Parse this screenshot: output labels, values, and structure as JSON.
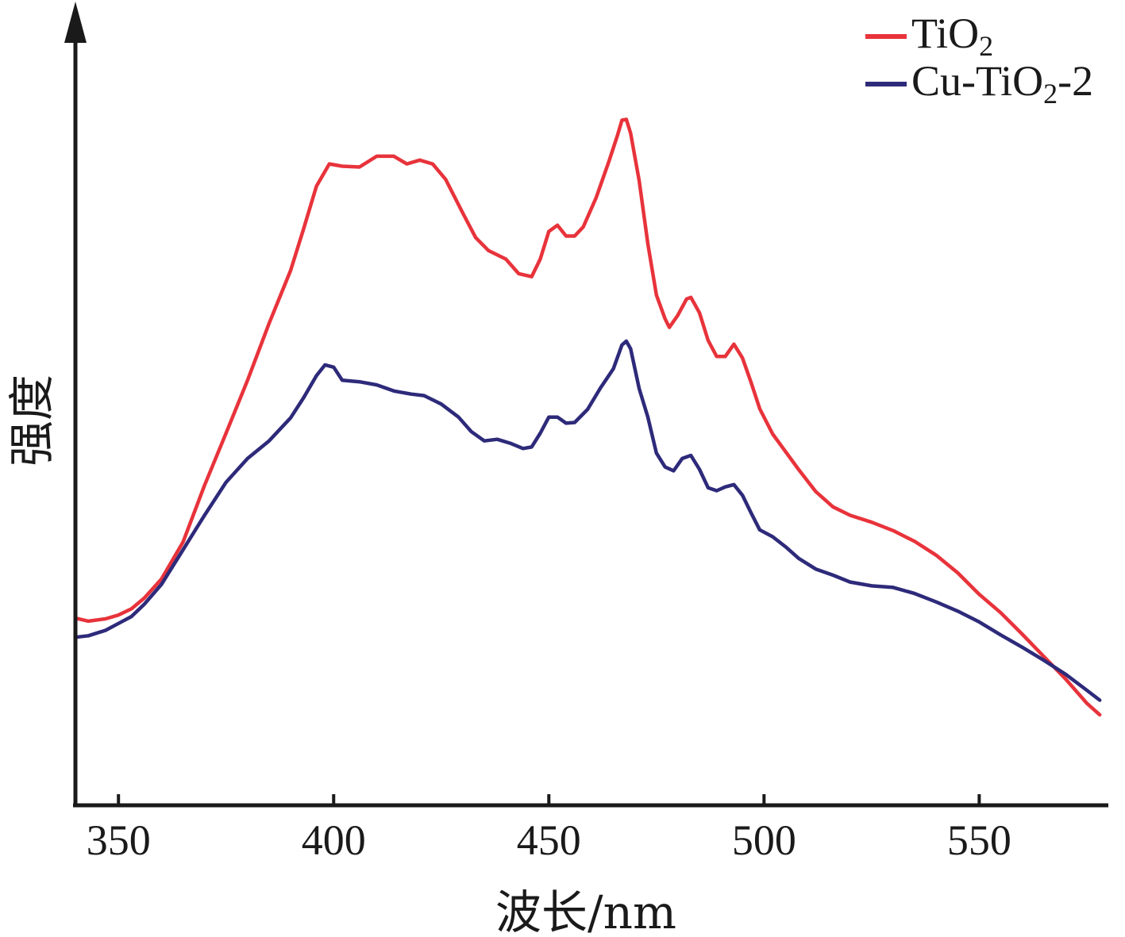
{
  "chart_data": {
    "type": "line",
    "xlabel": "波长/nm",
    "ylabel": "强度",
    "xlim": [
      340,
      580
    ],
    "ylim": [
      0,
      100
    ],
    "y_ticks_shown": false,
    "x_ticks": [
      350,
      400,
      450,
      500,
      550
    ],
    "grid": false,
    "legend_position": "top-right",
    "series": [
      {
        "name": "TiO",
        "name_sub": "2",
        "color": "#e8333b",
        "points": [
          [
            340,
            24.4
          ],
          [
            343,
            24.0
          ],
          [
            347,
            24.3
          ],
          [
            350,
            24.8
          ],
          [
            353,
            25.6
          ],
          [
            356,
            27.0
          ],
          [
            360,
            29.5
          ],
          [
            365,
            34.3
          ],
          [
            370,
            41.7
          ],
          [
            375,
            48.5
          ],
          [
            380,
            55.4
          ],
          [
            385,
            62.8
          ],
          [
            390,
            69.7
          ],
          [
            393,
            75.1
          ],
          [
            396,
            80.7
          ],
          [
            399,
            83.6
          ],
          [
            402,
            83.3
          ],
          [
            406,
            83.2
          ],
          [
            410,
            84.6
          ],
          [
            414,
            84.6
          ],
          [
            417,
            83.6
          ],
          [
            420,
            84.1
          ],
          [
            423,
            83.6
          ],
          [
            426,
            81.6
          ],
          [
            430,
            77.2
          ],
          [
            433,
            74.0
          ],
          [
            436,
            72.3
          ],
          [
            440,
            71.2
          ],
          [
            443,
            69.3
          ],
          [
            446,
            68.9
          ],
          [
            448,
            71.2
          ],
          [
            450,
            74.8
          ],
          [
            452,
            75.6
          ],
          [
            454,
            74.2
          ],
          [
            456,
            74.2
          ],
          [
            458,
            75.4
          ],
          [
            461,
            79.2
          ],
          [
            464,
            84.0
          ],
          [
            466,
            87.4
          ],
          [
            467,
            89.3
          ],
          [
            468,
            89.4
          ],
          [
            469,
            87.6
          ],
          [
            471,
            81.4
          ],
          [
            473,
            73.2
          ],
          [
            475,
            66.5
          ],
          [
            477,
            63.4
          ],
          [
            478,
            62.3
          ],
          [
            480,
            63.9
          ],
          [
            482,
            66.0
          ],
          [
            483,
            66.2
          ],
          [
            485,
            64.2
          ],
          [
            487,
            60.6
          ],
          [
            489,
            58.5
          ],
          [
            491,
            58.5
          ],
          [
            493,
            60.1
          ],
          [
            495,
            58.3
          ],
          [
            497,
            55.1
          ],
          [
            499,
            51.7
          ],
          [
            502,
            48.4
          ],
          [
            505,
            46.1
          ],
          [
            508,
            43.8
          ],
          [
            512,
            40.9
          ],
          [
            516,
            38.9
          ],
          [
            520,
            37.8
          ],
          [
            525,
            36.9
          ],
          [
            530,
            35.8
          ],
          [
            535,
            34.4
          ],
          [
            540,
            32.6
          ],
          [
            545,
            30.3
          ],
          [
            550,
            27.5
          ],
          [
            555,
            25.1
          ],
          [
            560,
            22.3
          ],
          [
            565,
            19.4
          ],
          [
            570,
            16.5
          ],
          [
            575,
            13.3
          ],
          [
            578,
            11.8
          ]
        ]
      },
      {
        "name": "Cu-TiO",
        "name_sub": "2",
        "name_suffix": "-2",
        "color": "#2e2a7a",
        "points": [
          [
            340,
            21.9
          ],
          [
            343,
            22.1
          ],
          [
            347,
            22.8
          ],
          [
            350,
            23.7
          ],
          [
            353,
            24.6
          ],
          [
            356,
            26.2
          ],
          [
            360,
            28.8
          ],
          [
            365,
            33.3
          ],
          [
            370,
            37.8
          ],
          [
            375,
            42.1
          ],
          [
            380,
            45.2
          ],
          [
            385,
            47.5
          ],
          [
            390,
            50.5
          ],
          [
            393,
            53.1
          ],
          [
            396,
            56.0
          ],
          [
            398,
            57.4
          ],
          [
            400,
            57.1
          ],
          [
            402,
            55.4
          ],
          [
            406,
            55.2
          ],
          [
            410,
            54.8
          ],
          [
            414,
            54.0
          ],
          [
            418,
            53.6
          ],
          [
            421,
            53.4
          ],
          [
            425,
            52.3
          ],
          [
            429,
            50.6
          ],
          [
            432,
            48.7
          ],
          [
            435,
            47.5
          ],
          [
            438,
            47.7
          ],
          [
            441,
            47.2
          ],
          [
            444,
            46.5
          ],
          [
            446,
            46.7
          ],
          [
            448,
            48.5
          ],
          [
            450,
            50.6
          ],
          [
            452,
            50.6
          ],
          [
            454,
            49.8
          ],
          [
            456,
            49.9
          ],
          [
            459,
            51.6
          ],
          [
            462,
            54.4
          ],
          [
            465,
            56.9
          ],
          [
            467,
            60.0
          ],
          [
            468,
            60.5
          ],
          [
            469,
            59.5
          ],
          [
            471,
            54.3
          ],
          [
            473,
            50.6
          ],
          [
            475,
            45.9
          ],
          [
            477,
            44.1
          ],
          [
            479,
            43.6
          ],
          [
            481,
            45.2
          ],
          [
            483,
            45.6
          ],
          [
            485,
            43.8
          ],
          [
            487,
            41.4
          ],
          [
            489,
            41.0
          ],
          [
            491,
            41.5
          ],
          [
            493,
            41.8
          ],
          [
            495,
            40.4
          ],
          [
            497,
            38.1
          ],
          [
            499,
            35.9
          ],
          [
            502,
            35.0
          ],
          [
            505,
            33.7
          ],
          [
            508,
            32.2
          ],
          [
            512,
            30.8
          ],
          [
            516,
            30.0
          ],
          [
            520,
            29.1
          ],
          [
            525,
            28.6
          ],
          [
            530,
            28.4
          ],
          [
            535,
            27.6
          ],
          [
            540,
            26.5
          ],
          [
            545,
            25.3
          ],
          [
            550,
            23.9
          ],
          [
            555,
            22.2
          ],
          [
            560,
            20.6
          ],
          [
            565,
            18.9
          ],
          [
            570,
            17.1
          ],
          [
            575,
            15.0
          ],
          [
            578,
            13.7
          ]
        ]
      }
    ]
  }
}
